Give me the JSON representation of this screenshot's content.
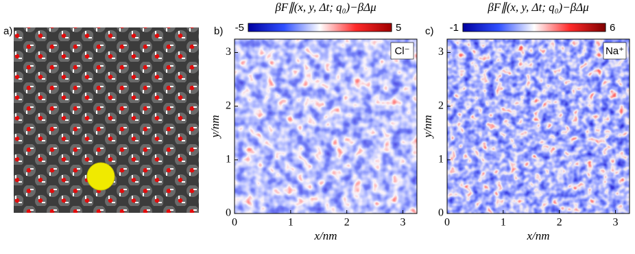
{
  "panel_labels": [
    "a)",
    "b)",
    "c)"
  ],
  "chart_data": [
    {
      "type": "heatmap",
      "title": "βF∥(x, y, Δt; q₀)−βΔμ",
      "annotation": "Cl⁻",
      "xlabel": "x/nm",
      "ylabel": "y/nm",
      "xlim": [
        0,
        3.25
      ],
      "ylim": [
        0,
        3.25
      ],
      "xticks": [
        0,
        1,
        2,
        3
      ],
      "yticks": [
        0,
        1,
        2,
        3
      ],
      "clim": [
        -5,
        5
      ],
      "cticks": [
        -5,
        5
      ],
      "colors": [
        "#0000a0",
        "#3050ff",
        "#ffffff",
        "#ff2a2a",
        "#a00000"
      ]
    },
    {
      "type": "heatmap",
      "title": "βF∥(x, y, Δt; q₀)−βΔμ",
      "annotation": "Na⁺",
      "xlabel": "x/nm",
      "ylabel": "y/nm",
      "xlim": [
        0,
        3.25
      ],
      "ylim": [
        0,
        3.25
      ],
      "xticks": [
        0,
        1,
        2,
        3
      ],
      "yticks": [
        0,
        1,
        2,
        3
      ],
      "clim": [
        -1,
        6
      ],
      "cticks": [
        -1,
        6
      ],
      "colors": [
        "#0000a0",
        "#3050ff",
        "#ffffff",
        "#ff2a2a",
        "#800000"
      ]
    }
  ]
}
